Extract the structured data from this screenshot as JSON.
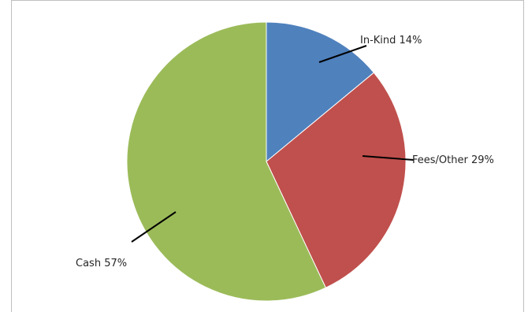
{
  "colors": {
    "in_kind": "#4f81bd",
    "fees_other": "#c0504d",
    "cash": "#9bbb59",
    "border": "#bfbfbf",
    "leader": "#000000"
  },
  "chart_data": {
    "type": "pie",
    "title": "",
    "legend": "none",
    "start_angle_deg": 0,
    "direction": "clockwise",
    "slices": [
      {
        "label": "In-Kind",
        "value": 14,
        "percent_label": "14%",
        "display_label": "In-Kind 14%"
      },
      {
        "label": "Fees/Other",
        "value": 29,
        "percent_label": "29%",
        "display_label": "Fees/Other 29%"
      },
      {
        "label": "Cash",
        "value": 57,
        "percent_label": "57%",
        "display_label": "Cash 57%"
      }
    ]
  }
}
